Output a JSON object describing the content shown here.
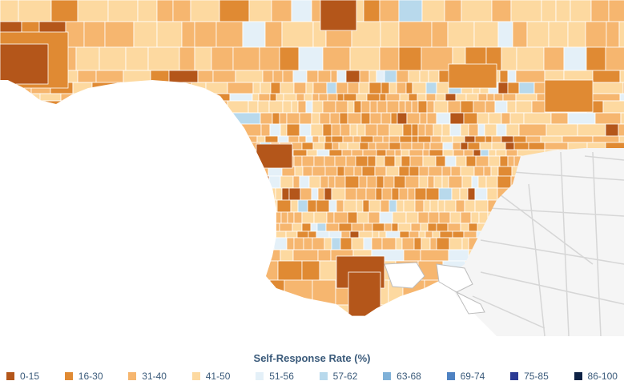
{
  "legend": {
    "title": "Self-Response Rate (%)",
    "items": [
      {
        "label": "0-15",
        "color": "#b4561a"
      },
      {
        "label": "16-30",
        "color": "#e08a33"
      },
      {
        "label": "31-40",
        "color": "#f6b66f"
      },
      {
        "label": "41-50",
        "color": "#fdd9a0"
      },
      {
        "label": "51-56",
        "color": "#e4f0f8"
      },
      {
        "label": "57-62",
        "color": "#b8d9ec"
      },
      {
        "label": "63-68",
        "color": "#7fb1d8"
      },
      {
        "label": "69-74",
        "color": "#4e82c2"
      },
      {
        "label": "75-85",
        "color": "#2b3a94"
      },
      {
        "label": "86-100",
        "color": "#0e2245"
      }
    ]
  },
  "colors": {
    "ocean": "#ffffff",
    "tract_border": "#ffffff",
    "basemap_land": "#f5f5f5",
    "basemap_roads": "#d6d6d6"
  }
}
